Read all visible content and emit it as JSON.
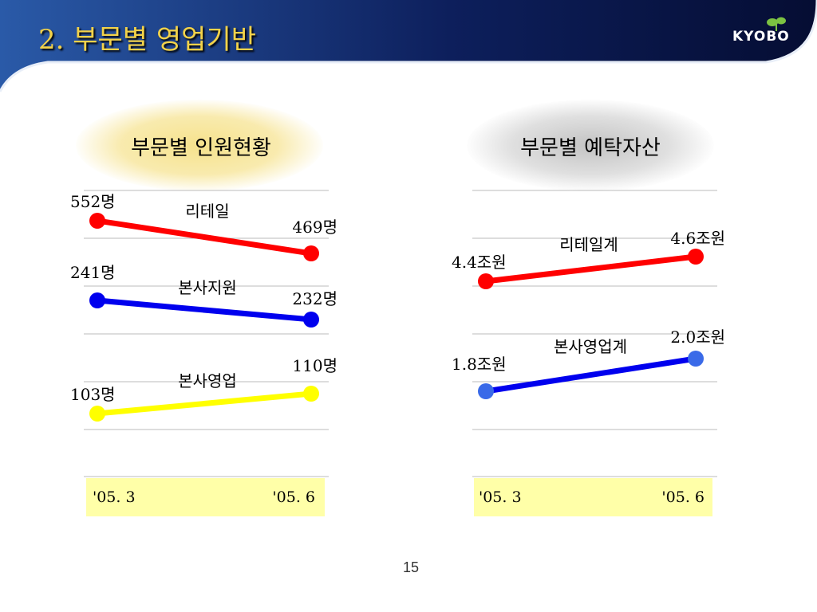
{
  "slide": {
    "title": "2. 부문별 영업기반",
    "logo": "KYOBO",
    "page_number": "15"
  },
  "colors": {
    "header_dark": "#0a1540",
    "header_blue": "#2a5aa8",
    "title_gold": "#f2d24a",
    "axis_box": "#ffffa8",
    "red": "#ff0000",
    "blue": "#0000ee",
    "yellow": "#ffff00",
    "blue_light": "#3a6ae8",
    "logo_green": "#7cc242"
  },
  "chart_data": [
    {
      "type": "line",
      "title": "부문별 인원현황",
      "categories": [
        "'05. 3",
        "'05. 6"
      ],
      "series": [
        {
          "name": "리테일",
          "values": [
            552,
            469
          ],
          "labels": [
            "552명",
            "469명"
          ],
          "color": "#ff0000"
        },
        {
          "name": "본사지원",
          "values": [
            241,
            232
          ],
          "labels": [
            "241명",
            "232명"
          ],
          "color": "#0000ee"
        },
        {
          "name": "본사영업",
          "values": [
            103,
            110
          ],
          "labels": [
            "103명",
            "110명"
          ],
          "color": "#ffff00"
        }
      ],
      "grid": true,
      "scale": "broken axis"
    },
    {
      "type": "line",
      "title": "부문별 예탁자산",
      "categories": [
        "'05. 3",
        "'05. 6"
      ],
      "series": [
        {
          "name": "리테일계",
          "values": [
            4.4,
            4.6
          ],
          "labels": [
            "4.4조원",
            "4.6조원"
          ],
          "color": "#ff0000"
        },
        {
          "name": "본사영업계",
          "values": [
            1.8,
            2.0
          ],
          "labels": [
            "1.8조원",
            "2.0조원"
          ],
          "color": "#0000ee"
        }
      ],
      "grid": true,
      "scale": "broken axis"
    }
  ]
}
